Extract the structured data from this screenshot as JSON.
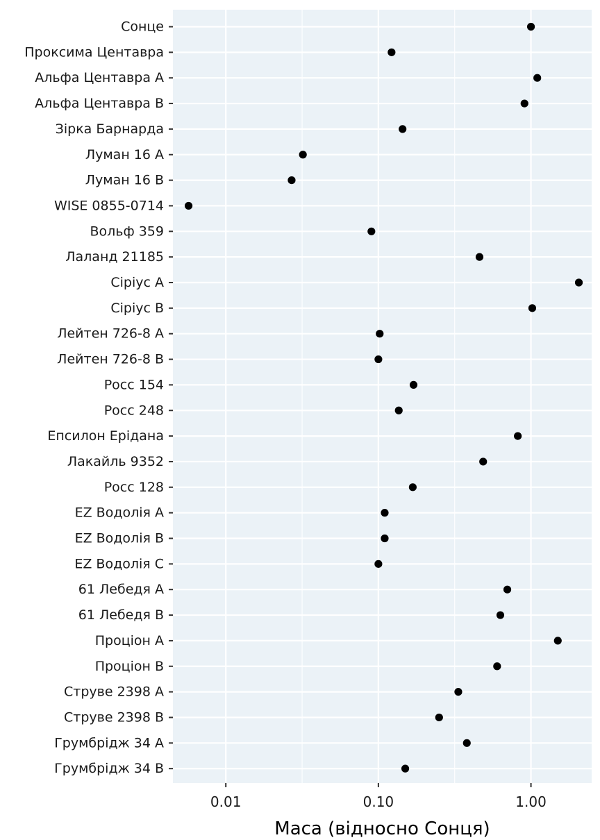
{
  "chart_data": {
    "type": "scatter",
    "title": "",
    "xlabel": "Маса (відносно Сонця)",
    "ylabel": "",
    "x_scale": "log10",
    "xlim": [
      0.0045,
      2.5
    ],
    "x_ticks": [
      0.01,
      0.1,
      1.0
    ],
    "x_tick_labels": [
      "0.01",
      "0.10",
      "1.00"
    ],
    "grid": true,
    "legend": "none",
    "colors": {
      "panel_background": "#ebf2f7",
      "grid": "#ffffff",
      "point": "#000000",
      "tick": "#333333"
    },
    "categories": [
      "Сонце",
      "Проксима Центавра",
      "Альфа Центавра A",
      "Альфа Центавра B",
      "Зірка Барнарда",
      "Луман 16 A",
      "Луман 16 B",
      "WISE 0855-0714",
      "Вольф 359",
      "Лаланд 21185",
      "Сіріус A",
      "Сіріус B",
      "Лейтен 726-8 A",
      "Лейтен 726-8 B",
      "Росс 154",
      "Росс 248",
      "Епсилон Ерідана",
      "Лакайль 9352",
      "Росс 128",
      "EZ Водолія A",
      "EZ Водолія B",
      "EZ Водолія C",
      "61 Лебедя A",
      "61 Лебедя B",
      "Проціон A",
      "Проціон B",
      "Струве 2398 A",
      "Струве 2398 B",
      "Грумбрідж 34 A",
      "Грумбрідж 34 B"
    ],
    "values": [
      1.0,
      0.122,
      1.1,
      0.907,
      0.144,
      0.032,
      0.027,
      0.0057,
      0.09,
      0.46,
      2.06,
      1.02,
      0.102,
      0.1,
      0.17,
      0.136,
      0.82,
      0.486,
      0.168,
      0.11,
      0.11,
      0.1,
      0.7,
      0.63,
      1.5,
      0.6,
      0.334,
      0.25,
      0.38,
      0.15
    ]
  }
}
